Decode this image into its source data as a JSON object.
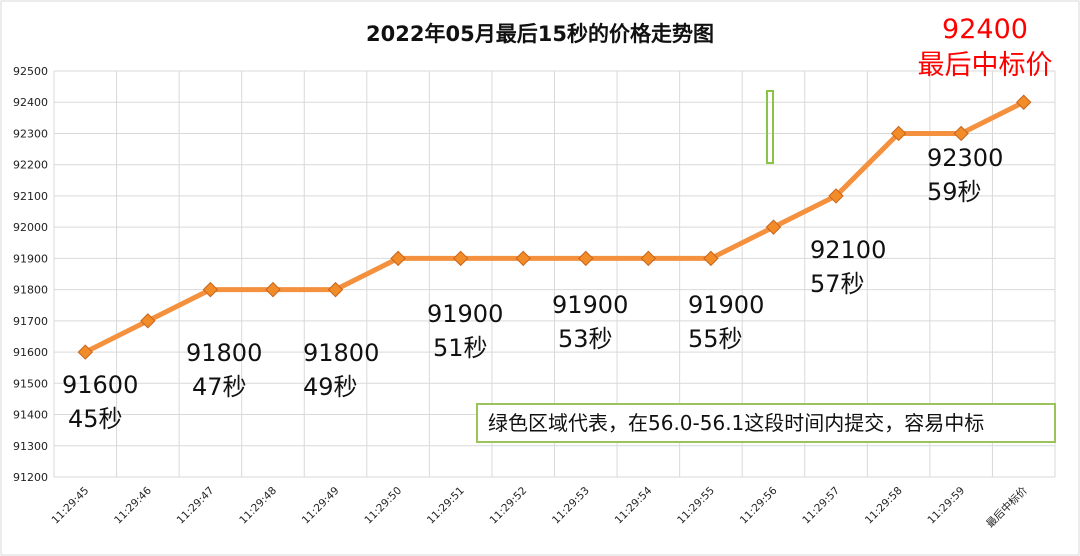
{
  "chart_data": {
    "type": "line",
    "title": "2022年05月最后15秒的价格走势图",
    "categories": [
      "11:29:45",
      "11:29:46",
      "11:29:47",
      "11:29:48",
      "11:29:49",
      "11:29:50",
      "11:29:51",
      "11:29:52",
      "11:29:53",
      "11:29:54",
      "11:29:55",
      "11:29:56",
      "11:29:57",
      "11:29:58",
      "11:29:59",
      "最后中标价"
    ],
    "values": [
      91600,
      91700,
      91800,
      91800,
      91800,
      91900,
      91900,
      91900,
      91900,
      91900,
      91900,
      92000,
      92100,
      92300,
      92300,
      92400
    ],
    "ylim": [
      91200,
      92500
    ],
    "yticks": [
      91200,
      91300,
      91400,
      91500,
      91600,
      91700,
      91800,
      91900,
      92000,
      92100,
      92200,
      92300,
      92400,
      92500
    ],
    "grid": true,
    "xlabel": "",
    "ylabel": "",
    "line_color": "#f4913e",
    "marker_color": "#f28c28",
    "annotations": [
      {
        "value": "91600",
        "label": "45秒"
      },
      {
        "value": "91800",
        "label": "47秒"
      },
      {
        "value": "91800",
        "label": "49秒"
      },
      {
        "value": "91900",
        "label": "51秒"
      },
      {
        "value": "91900",
        "label": "53秒"
      },
      {
        "value": "91900",
        "label": "55秒"
      },
      {
        "value": "92100",
        "label": "57秒"
      },
      {
        "value": "92300",
        "label": "59秒"
      }
    ],
    "final_price": {
      "value": "92400",
      "label": "最后中标价",
      "color": "#ff0000"
    },
    "note": "绿色区域代表，在56.0-56.1这段时间内提交，容易中标",
    "note_border_color": "#9bc35a"
  }
}
